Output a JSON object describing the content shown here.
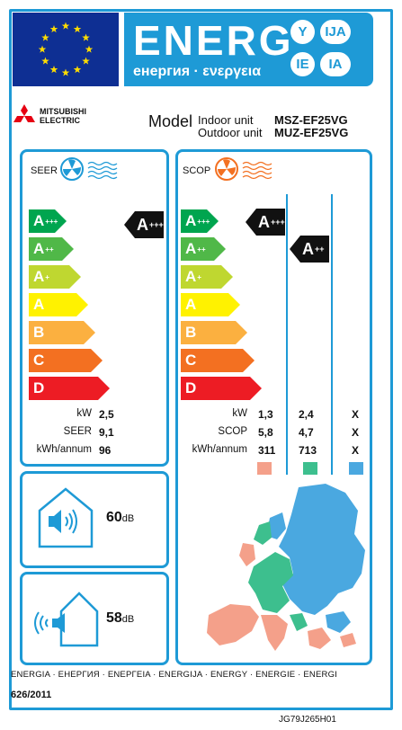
{
  "header": {
    "title": "ENERG",
    "subtitle": "енергия · ενεργεια",
    "languages": [
      "Y",
      "IJA",
      "IE",
      "IA"
    ],
    "colors": {
      "blue": "#1e9ad6",
      "eu_blue": "#0e2f93",
      "star": "#ffdd00"
    }
  },
  "brand": {
    "line1": "MITSUBISHI",
    "line2": "ELECTRIC",
    "logo_icon": "mitsubishi-diamonds-icon"
  },
  "model": {
    "label": "Model",
    "indoor_label": "Indoor unit",
    "outdoor_label": "Outdoor unit",
    "indoor_model": "MSZ-EF25VG",
    "outdoor_model": "MUZ-EF25VG"
  },
  "scale": [
    {
      "label": "A",
      "sup": "+++",
      "color": "#00a54f"
    },
    {
      "label": "A",
      "sup": "++",
      "color": "#50b848"
    },
    {
      "label": "A",
      "sup": "+",
      "color": "#bfd730"
    },
    {
      "label": "A",
      "sup": "",
      "color": "#fff200"
    },
    {
      "label": "B",
      "sup": "",
      "color": "#fbb040"
    },
    {
      "label": "C",
      "sup": "",
      "color": "#f37021"
    },
    {
      "label": "D",
      "sup": "",
      "color": "#ed1c24"
    }
  ],
  "seer": {
    "title": "SEER",
    "icon": "cooling-fan-icon",
    "rating": {
      "label": "A",
      "sup": "+++"
    },
    "rows": [
      {
        "label": "kW",
        "value": "2,5"
      },
      {
        "label": "SEER",
        "value": "9,1"
      },
      {
        "label": "kWh/annum",
        "value": "96"
      }
    ]
  },
  "scop": {
    "title": "SCOP",
    "icon": "heating-fan-icon",
    "ratings": [
      {
        "label": "A",
        "sup": "+++"
      },
      {
        "label": "A",
        "sup": "++"
      }
    ],
    "rows": [
      {
        "label": "kW",
        "values": [
          "1,3",
          "2,4",
          "X"
        ]
      },
      {
        "label": "SCOP",
        "values": [
          "5,8",
          "4,7",
          "X"
        ]
      },
      {
        "label": "kWh/annum",
        "values": [
          "311",
          "713",
          "X"
        ]
      }
    ],
    "zone_colors": [
      "#f4a08a",
      "#3dbf8e",
      "#4aa8e0"
    ]
  },
  "noise_indoor": {
    "value": "60",
    "unit": "dB"
  },
  "noise_outdoor": {
    "value": "58",
    "unit": "dB"
  },
  "footer": {
    "languages_line": "ENERGIA · ЕНЕРГИЯ · ΕΝΕΡΓΕΙΑ · ENERGIJA · ENERGY · ENERGIE · ENERGI",
    "regulation": "626/2011",
    "code": "JG79J265H01"
  }
}
